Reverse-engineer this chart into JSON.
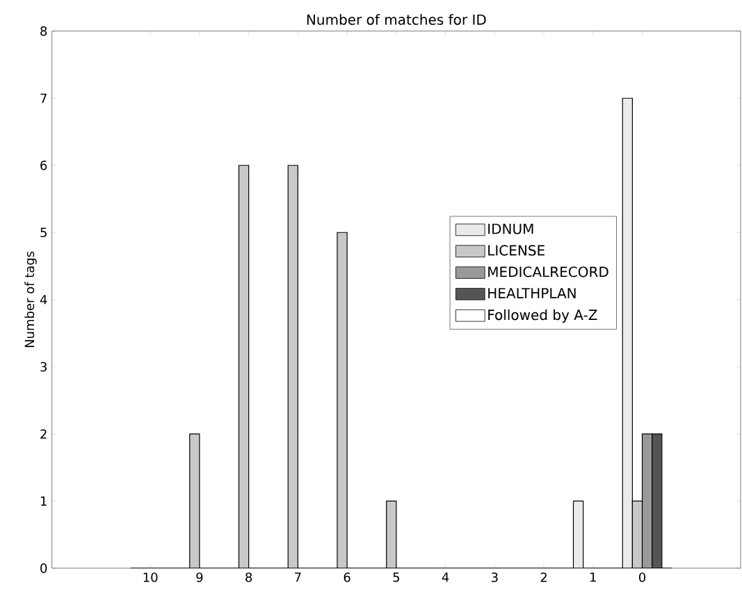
{
  "chart_data": {
    "type": "bar",
    "title": "Number of matches for ID",
    "ylabel": "Number of tags",
    "categories": [
      "10",
      "9",
      "8",
      "7",
      "6",
      "5",
      "4",
      "3",
      "2",
      "1",
      "0"
    ],
    "series": [
      {
        "name": "IDNUM",
        "color": "#ebebeb",
        "values": [
          0,
          0,
          0,
          0,
          0,
          0,
          0,
          0,
          0,
          1,
          7
        ]
      },
      {
        "name": "LICENSE",
        "color": "#c8c8c8",
        "values": [
          0,
          2,
          6,
          6,
          5,
          1,
          0,
          0,
          0,
          0,
          1
        ]
      },
      {
        "name": "MEDICALRECORD",
        "color": "#999999",
        "values": [
          0,
          0,
          0,
          0,
          0,
          0,
          0,
          0,
          0,
          0,
          2
        ]
      },
      {
        "name": "HEALTHPLAN",
        "color": "#555555",
        "values": [
          0,
          0,
          0,
          0,
          0,
          0,
          0,
          0,
          0,
          0,
          2
        ]
      },
      {
        "name": "Followed by A-Z",
        "color": "#ffffff",
        "values": [
          0,
          0,
          0,
          0,
          0,
          0,
          0,
          0,
          0,
          0,
          0
        ]
      }
    ],
    "ylim": [
      0,
      8
    ],
    "yticks": [
      0,
      1,
      2,
      3,
      4,
      5,
      6,
      7,
      8
    ],
    "grid": false,
    "legend": "right"
  }
}
